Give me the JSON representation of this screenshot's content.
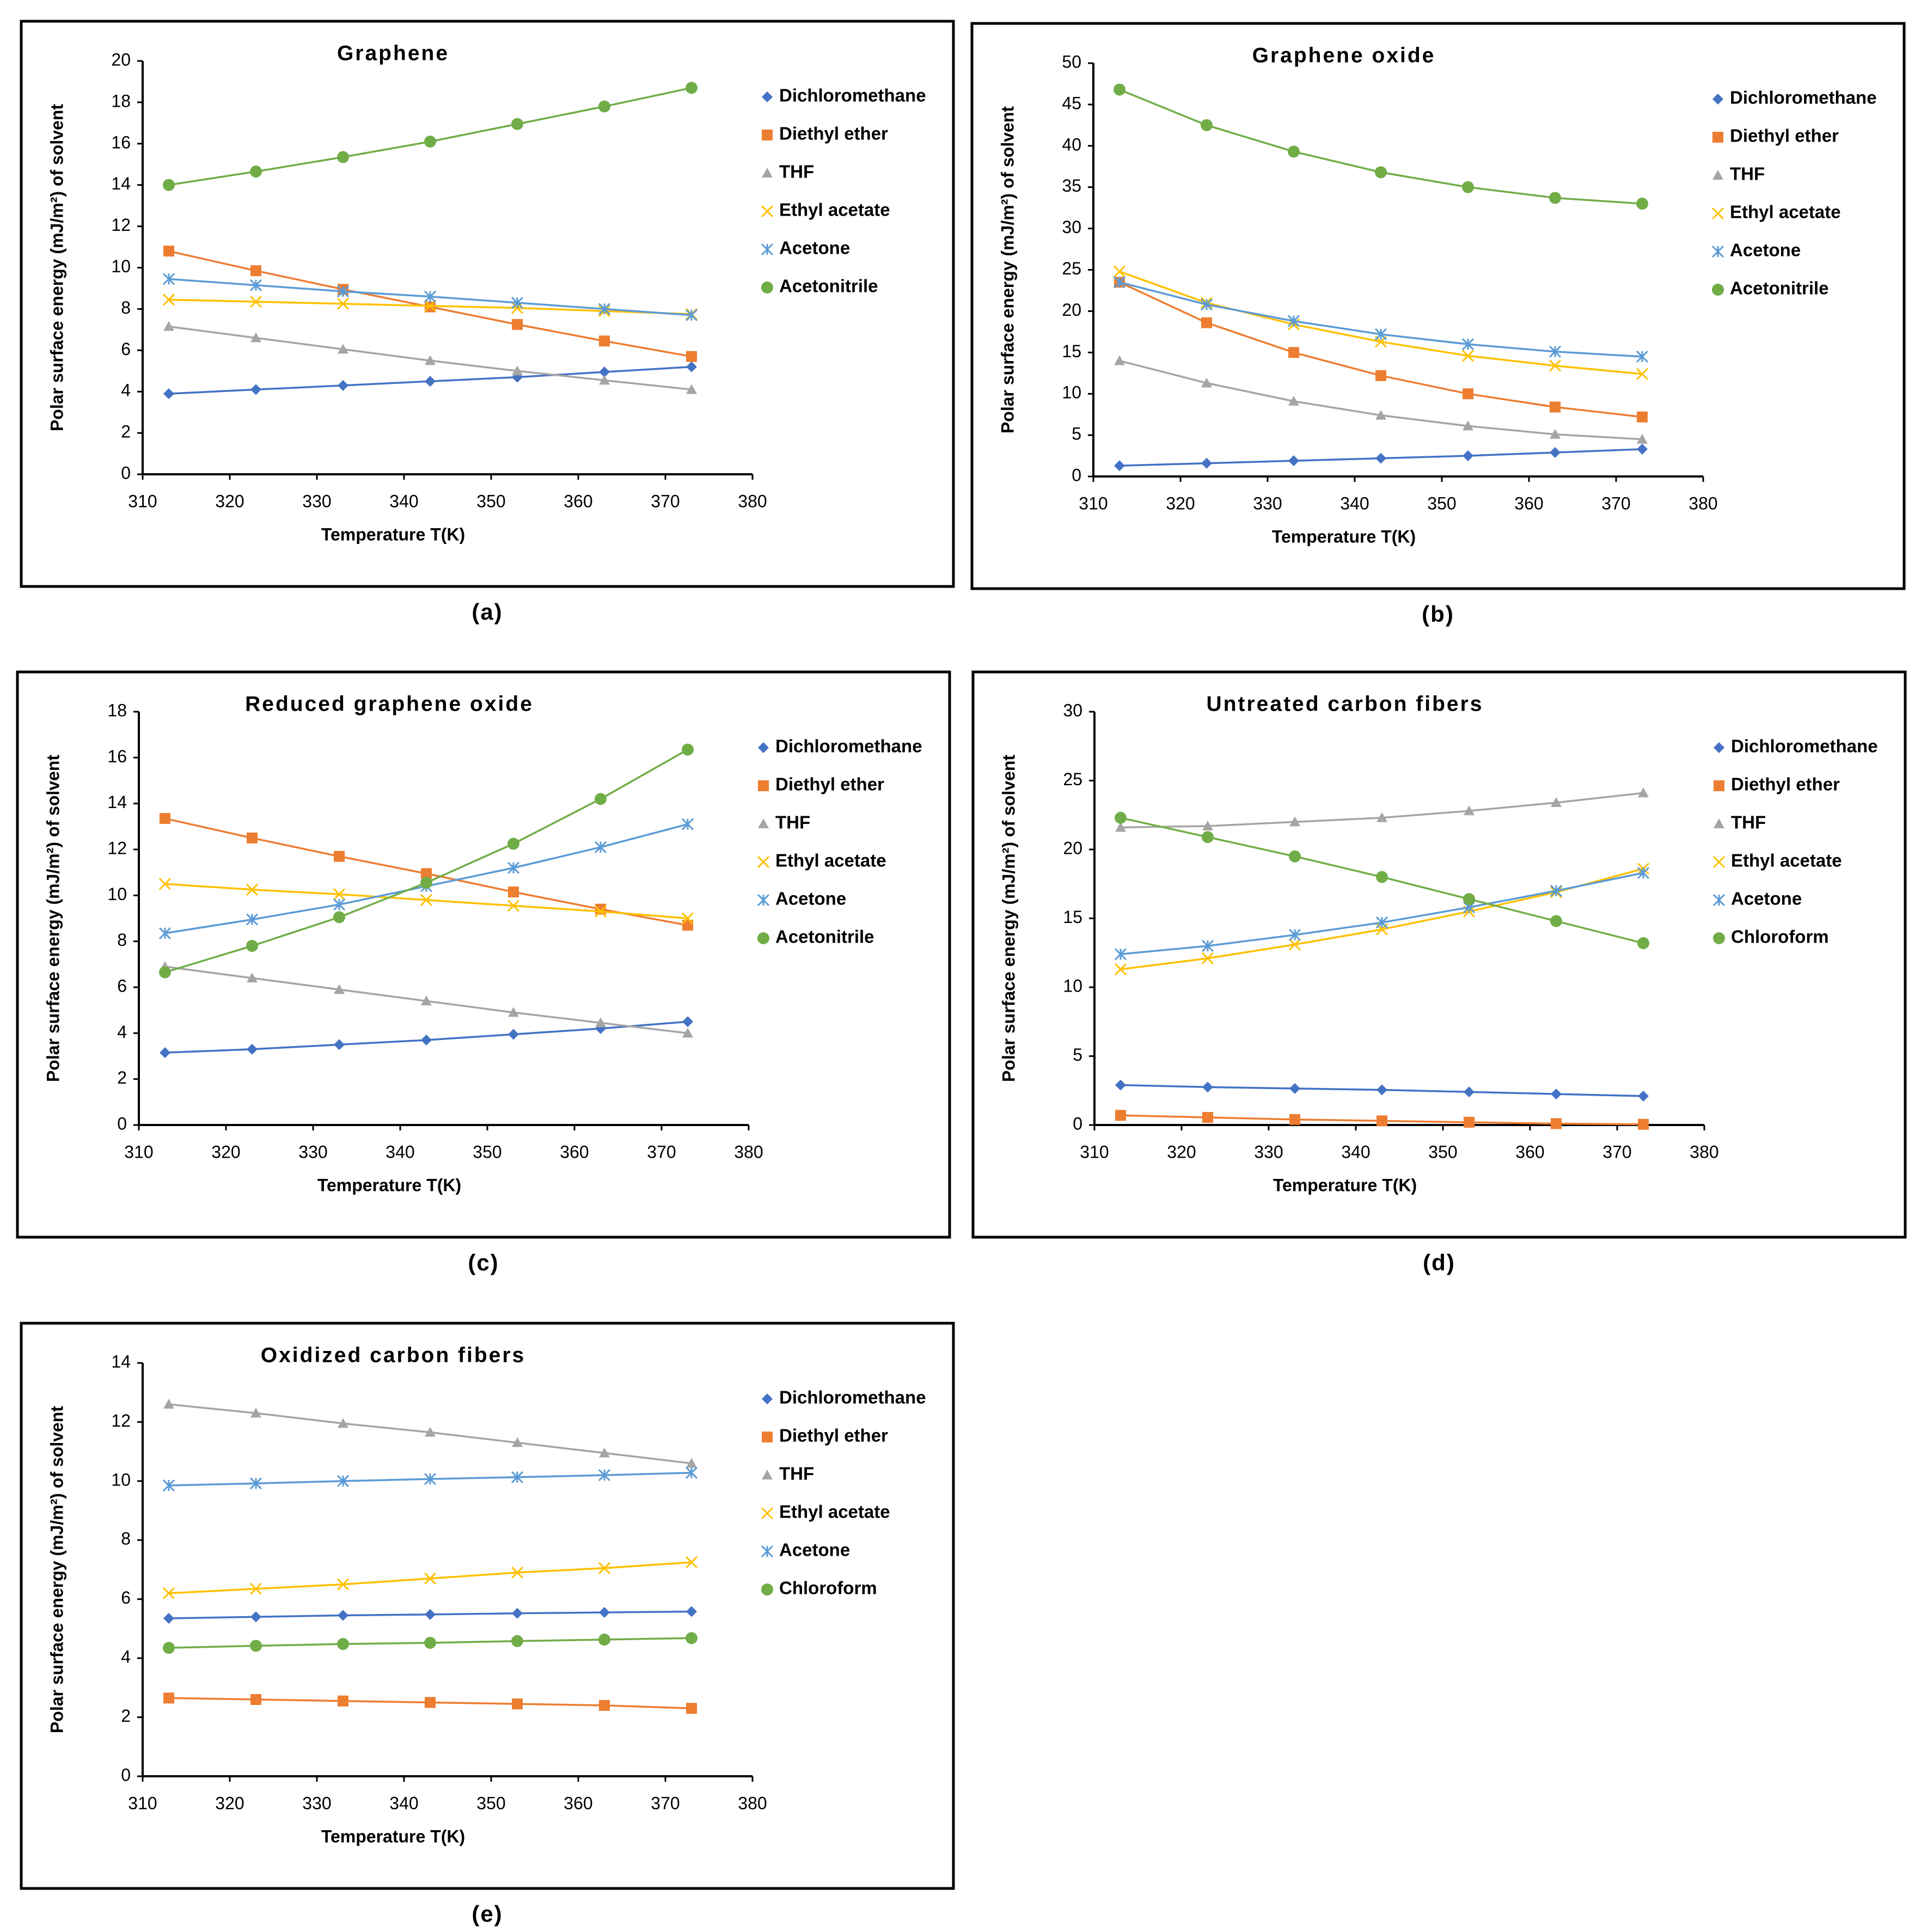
{
  "chart_data": [
    {
      "type": "line",
      "title": "Graphene",
      "caption": "(a)",
      "x_label": "Temperature T(K)",
      "y_label": "Polar surface energy (mJ/m²) of solvent",
      "x": [
        313,
        323,
        333,
        343,
        353,
        363,
        373
      ],
      "xlim": [
        310,
        380
      ],
      "xticks": [
        310,
        320,
        330,
        340,
        350,
        360,
        370,
        380
      ],
      "ylim": [
        0,
        20
      ],
      "yticks": [
        0,
        2,
        4,
        6,
        8,
        10,
        12,
        14,
        16,
        18,
        20
      ],
      "legend": "right",
      "grid": false,
      "series": [
        {
          "name": "Dichloromethane",
          "color": "#4472c4",
          "marker": "diamond",
          "values": [
            3.9,
            4.1,
            4.3,
            4.5,
            4.7,
            4.95,
            5.2
          ]
        },
        {
          "name": "Diethyl ether",
          "color": "#ed7d31",
          "marker": "square",
          "values": [
            10.8,
            9.85,
            8.95,
            8.1,
            7.25,
            6.45,
            5.7
          ]
        },
        {
          "name": "THF",
          "color": "#a5a5a5",
          "marker": "triangle",
          "values": [
            7.15,
            6.6,
            6.05,
            5.5,
            5.0,
            4.55,
            4.1
          ]
        },
        {
          "name": "Ethyl acetate",
          "color": "#ffc000",
          "marker": "x",
          "values": [
            8.45,
            8.35,
            8.25,
            8.15,
            8.05,
            7.9,
            7.75
          ]
        },
        {
          "name": "Acetone",
          "color": "#5b9bd5",
          "marker": "star",
          "values": [
            9.45,
            9.15,
            8.85,
            8.6,
            8.3,
            8.0,
            7.7
          ]
        },
        {
          "name": "Acetonitrile",
          "color": "#70ad47",
          "marker": "circle",
          "values": [
            14.0,
            14.65,
            15.35,
            16.1,
            16.95,
            17.8,
            18.7
          ]
        }
      ]
    },
    {
      "type": "line",
      "title": "Graphene oxide",
      "caption": "(b)",
      "x_label": "Temperature T(K)",
      "y_label": "Polar surface energy (mJ/m²) of solvent",
      "x": [
        313,
        323,
        333,
        343,
        353,
        363,
        373
      ],
      "xlim": [
        310,
        380
      ],
      "xticks": [
        310,
        320,
        330,
        340,
        350,
        360,
        370,
        380
      ],
      "ylim": [
        0,
        50
      ],
      "yticks": [
        0,
        5,
        10,
        15,
        20,
        25,
        30,
        35,
        40,
        45,
        50
      ],
      "legend": "right",
      "grid": false,
      "series": [
        {
          "name": "Dichloromethane",
          "color": "#4472c4",
          "marker": "diamond",
          "values": [
            1.3,
            1.6,
            1.9,
            2.2,
            2.5,
            2.9,
            3.3
          ]
        },
        {
          "name": "Diethyl ether",
          "color": "#ed7d31",
          "marker": "square",
          "values": [
            23.5,
            18.6,
            15.0,
            12.2,
            10.0,
            8.4,
            7.2
          ]
        },
        {
          "name": "THF",
          "color": "#a5a5a5",
          "marker": "triangle",
          "values": [
            14.0,
            11.3,
            9.1,
            7.4,
            6.1,
            5.1,
            4.5
          ]
        },
        {
          "name": "Ethyl acetate",
          "color": "#ffc000",
          "marker": "x",
          "values": [
            24.8,
            21.0,
            18.4,
            16.3,
            14.6,
            13.4,
            12.4
          ]
        },
        {
          "name": "Acetone",
          "color": "#5b9bd5",
          "marker": "star",
          "values": [
            23.5,
            20.8,
            18.8,
            17.2,
            16.0,
            15.1,
            14.5
          ]
        },
        {
          "name": "Acetonitrile",
          "color": "#70ad47",
          "marker": "circle",
          "values": [
            46.8,
            42.5,
            39.3,
            36.8,
            35.0,
            33.7,
            33.0
          ]
        }
      ]
    },
    {
      "type": "line",
      "title": "Reduced graphene oxide",
      "caption": "(c)",
      "x_label": "Temperature T(K)",
      "y_label": "Polar surface energy (mJ/m²) of solvent",
      "x": [
        313,
        323,
        333,
        343,
        353,
        363,
        373
      ],
      "xlim": [
        310,
        380
      ],
      "xticks": [
        310,
        320,
        330,
        340,
        350,
        360,
        370,
        380
      ],
      "ylim": [
        0,
        18
      ],
      "yticks": [
        0,
        2,
        4,
        6,
        8,
        10,
        12,
        14,
        16,
        18
      ],
      "legend": "right",
      "grid": false,
      "series": [
        {
          "name": "Dichloromethane",
          "color": "#4472c4",
          "marker": "diamond",
          "values": [
            3.15,
            3.3,
            3.5,
            3.7,
            3.95,
            4.2,
            4.5
          ]
        },
        {
          "name": "Diethyl ether",
          "color": "#ed7d31",
          "marker": "square",
          "values": [
            13.35,
            12.5,
            11.7,
            10.95,
            10.15,
            9.4,
            8.7
          ]
        },
        {
          "name": "THF",
          "color": "#a5a5a5",
          "marker": "triangle",
          "values": [
            6.9,
            6.4,
            5.9,
            5.4,
            4.9,
            4.45,
            4.0
          ]
        },
        {
          "name": "Ethyl acetate",
          "color": "#ffc000",
          "marker": "x",
          "values": [
            10.5,
            10.25,
            10.05,
            9.8,
            9.55,
            9.3,
            9.0
          ]
        },
        {
          "name": "Acetone",
          "color": "#5b9bd5",
          "marker": "star",
          "values": [
            8.35,
            8.95,
            9.6,
            10.4,
            11.2,
            12.1,
            13.1
          ]
        },
        {
          "name": "Acetonitrile",
          "color": "#70ad47",
          "marker": "circle",
          "values": [
            6.65,
            7.8,
            9.05,
            10.55,
            12.25,
            14.2,
            16.35
          ]
        }
      ]
    },
    {
      "type": "line",
      "title": "Untreated carbon fibers",
      "caption": "(d)",
      "x_label": "Temperature T(K)",
      "y_label": "Polar surface energy (mJ/m²) of solvent",
      "x": [
        313,
        323,
        333,
        343,
        353,
        363,
        373
      ],
      "xlim": [
        310,
        380
      ],
      "xticks": [
        310,
        320,
        330,
        340,
        350,
        360,
        370,
        380
      ],
      "ylim": [
        0,
        30
      ],
      "yticks": [
        0,
        5,
        10,
        15,
        20,
        25,
        30
      ],
      "legend": "right",
      "grid": false,
      "series": [
        {
          "name": "Dichloromethane",
          "color": "#4472c4",
          "marker": "diamond",
          "values": [
            2.9,
            2.75,
            2.65,
            2.55,
            2.4,
            2.25,
            2.1
          ]
        },
        {
          "name": "Diethyl ether",
          "color": "#ed7d31",
          "marker": "square",
          "values": [
            0.7,
            0.55,
            0.4,
            0.3,
            0.2,
            0.1,
            0.05
          ]
        },
        {
          "name": "THF",
          "color": "#a5a5a5",
          "marker": "triangle",
          "values": [
            21.6,
            21.7,
            22.0,
            22.3,
            22.8,
            23.4,
            24.1
          ]
        },
        {
          "name": "Ethyl acetate",
          "color": "#ffc000",
          "marker": "x",
          "values": [
            11.3,
            12.1,
            13.1,
            14.2,
            15.5,
            16.9,
            18.6
          ]
        },
        {
          "name": "Acetone",
          "color": "#5b9bd5",
          "marker": "star",
          "values": [
            12.4,
            13.0,
            13.8,
            14.7,
            15.8,
            17.0,
            18.3
          ]
        },
        {
          "name": "Chloroform",
          "color": "#70ad47",
          "marker": "circle",
          "values": [
            22.3,
            20.9,
            19.5,
            18.0,
            16.4,
            14.8,
            13.2
          ]
        }
      ]
    },
    {
      "type": "line",
      "title": "Oxidized carbon fibers",
      "caption": "(e)",
      "x_label": "Temperature T(K)",
      "y_label": "Polar surface energy (mJ/m²) of solvent",
      "x": [
        313,
        323,
        333,
        343,
        353,
        363,
        373
      ],
      "xlim": [
        310,
        380
      ],
      "xticks": [
        310,
        320,
        330,
        340,
        350,
        360,
        370,
        380
      ],
      "ylim": [
        0,
        14
      ],
      "yticks": [
        0,
        2,
        4,
        6,
        8,
        10,
        12,
        14
      ],
      "legend": "right",
      "grid": false,
      "series": [
        {
          "name": "Dichloromethane",
          "color": "#4472c4",
          "marker": "diamond",
          "values": [
            5.35,
            5.4,
            5.45,
            5.48,
            5.52,
            5.55,
            5.58
          ]
        },
        {
          "name": "Diethyl ether",
          "color": "#ed7d31",
          "marker": "square",
          "values": [
            2.65,
            2.6,
            2.55,
            2.5,
            2.45,
            2.4,
            2.3
          ]
        },
        {
          "name": "THF",
          "color": "#a5a5a5",
          "marker": "triangle",
          "values": [
            12.6,
            12.3,
            11.95,
            11.65,
            11.3,
            10.95,
            10.6
          ]
        },
        {
          "name": "Ethyl acetate",
          "color": "#ffc000",
          "marker": "x",
          "values": [
            6.2,
            6.35,
            6.5,
            6.7,
            6.9,
            7.05,
            7.25
          ]
        },
        {
          "name": "Acetone",
          "color": "#5b9bd5",
          "marker": "star",
          "values": [
            9.85,
            9.92,
            10.0,
            10.07,
            10.13,
            10.2,
            10.28
          ]
        },
        {
          "name": "Chloroform",
          "color": "#70ad47",
          "marker": "circle",
          "values": [
            4.35,
            4.42,
            4.48,
            4.52,
            4.58,
            4.63,
            4.68
          ]
        }
      ]
    }
  ]
}
